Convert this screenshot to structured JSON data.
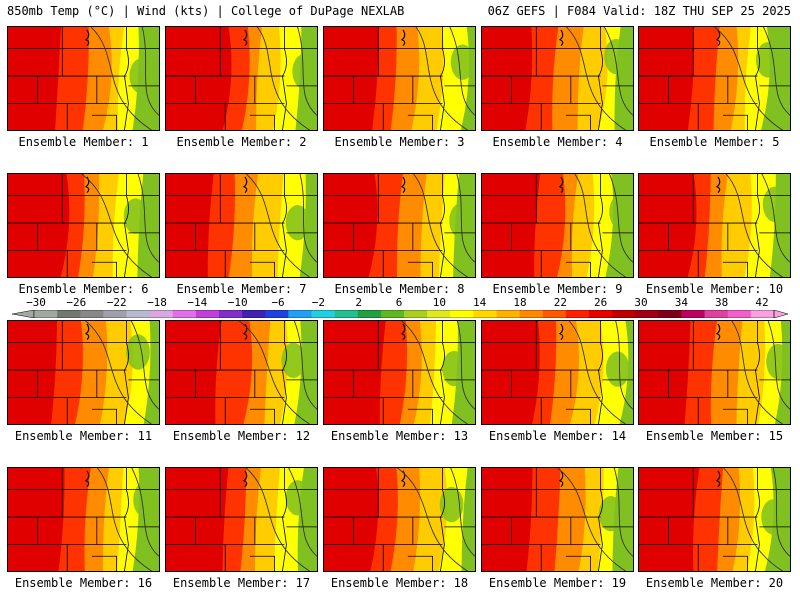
{
  "header": {
    "left": "850mb Temp (°C) | Wind (kts) | College of DuPage NEXLAB",
    "right": "06Z GEFS | F084 Valid: 18Z THU SEP 25 2025"
  },
  "panels": [
    {
      "label": "Ensemble Member: 1",
      "heat": 0.55
    },
    {
      "label": "Ensemble Member: 2",
      "heat": 0.7
    },
    {
      "label": "Ensemble Member: 3",
      "heat": 0.65
    },
    {
      "label": "Ensemble Member: 4",
      "heat": 0.62
    },
    {
      "label": "Ensemble Member: 5",
      "heat": 0.5
    },
    {
      "label": "Ensemble Member: 6",
      "heat": 0.58
    },
    {
      "label": "Ensemble Member: 7",
      "heat": 0.5
    },
    {
      "label": "Ensemble Member: 8",
      "heat": 0.6
    },
    {
      "label": "Ensemble Member: 9",
      "heat": 0.55
    },
    {
      "label": "Ensemble Member: 10",
      "heat": 0.52
    },
    {
      "label": "Ensemble Member: 11",
      "heat": 0.62
    },
    {
      "label": "Ensemble Member: 12",
      "heat": 0.68
    },
    {
      "label": "Ensemble Member: 13",
      "heat": 0.66
    },
    {
      "label": "Ensemble Member: 14",
      "heat": 0.7
    },
    {
      "label": "Ensemble Member: 15",
      "heat": 0.72
    },
    {
      "label": "Ensemble Member: 16",
      "heat": 0.6
    },
    {
      "label": "Ensemble Member: 17",
      "heat": 0.72
    },
    {
      "label": "Ensemble Member: 18",
      "heat": 0.66
    },
    {
      "label": "Ensemble Member: 19",
      "heat": 0.62
    },
    {
      "label": "Ensemble Member: 20",
      "heat": 0.66
    }
  ],
  "colorbar": {
    "ticks": [
      "−30",
      "−26",
      "−22",
      "−18",
      "−14",
      "−10",
      "−6",
      "−2",
      "2",
      "6",
      "10",
      "14",
      "18",
      "22",
      "26",
      "30",
      "34",
      "38",
      "42"
    ],
    "colors": [
      "#a0a8a0",
      "#707870",
      "#888888",
      "#a0a0a8",
      "#b8b8d0",
      "#d8a8e0",
      "#e070e8",
      "#c040d8",
      "#8030c8",
      "#4020b0",
      "#2040e0",
      "#20a0f0",
      "#20d0e0",
      "#20c090",
      "#20a040",
      "#60b820",
      "#a8d020",
      "#e0e820",
      "#ffff00",
      "#ffd800",
      "#ffb000",
      "#ff8800",
      "#ff5800",
      "#ff2000",
      "#e80000",
      "#c00000",
      "#a00010",
      "#800018",
      "#c00060",
      "#e040a0",
      "#f060c8",
      "#f8a0e0"
    ]
  },
  "palette": {
    "green": "#80c020",
    "yellow": "#ffff00",
    "gold": "#ffcc00",
    "orange": "#ff8c00",
    "red": "#ff3300",
    "deepred": "#e00000"
  }
}
